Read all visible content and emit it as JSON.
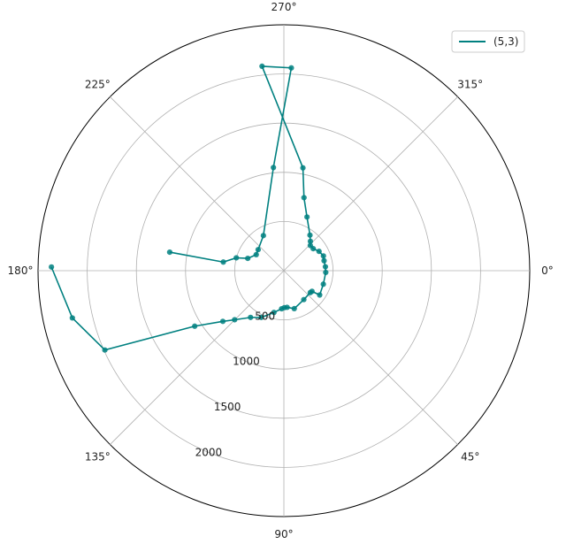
{
  "chart_data": {
    "type": "line",
    "projection": "polar",
    "theta_direction": "clockwise",
    "theta_zero_location": "east",
    "rlim": [
      0,
      2500
    ],
    "grid": true,
    "legend_position": "top-right",
    "angle_ticks": [
      {
        "deg": 0,
        "label": "0°"
      },
      {
        "deg": 45,
        "label": "45°"
      },
      {
        "deg": 90,
        "label": "90°"
      },
      {
        "deg": 135,
        "label": "135°"
      },
      {
        "deg": 180,
        "label": "180°"
      },
      {
        "deg": 225,
        "label": "225°"
      },
      {
        "deg": 270,
        "label": "270°"
      },
      {
        "deg": 315,
        "label": "315°"
      }
    ],
    "radial_ticks": [
      {
        "r": 500,
        "label": "500"
      },
      {
        "r": 1000,
        "label": "1000"
      },
      {
        "r": 1500,
        "label": "1500"
      },
      {
        "r": 2000,
        "label": "2000"
      }
    ],
    "radial_grid": [
      500,
      1000,
      1500,
      2000,
      2500
    ],
    "series": [
      {
        "name": "(5,3)",
        "color": "#008080",
        "points": [
          {
            "theta": 189.2,
            "r": 1176
          },
          {
            "theta": 188.1,
            "r": 622
          },
          {
            "theta": 195.1,
            "r": 501
          },
          {
            "theta": 198.8,
            "r": 388
          },
          {
            "theta": 210.1,
            "r": 325
          },
          {
            "theta": 219.3,
            "r": 338
          },
          {
            "theta": 239.7,
            "r": 413
          },
          {
            "theta": 264.2,
            "r": 1054
          },
          {
            "theta": 272.1,
            "r": 2063
          },
          {
            "theta": 263.9,
            "r": 2090
          },
          {
            "theta": 280.5,
            "r": 1063
          },
          {
            "theta": 285.4,
            "r": 770
          },
          {
            "theta": 293.3,
            "r": 594
          },
          {
            "theta": 306.3,
            "r": 448
          },
          {
            "theta": 312.1,
            "r": 402
          },
          {
            "theta": 316.4,
            "r": 371
          },
          {
            "theta": 323.1,
            "r": 373
          },
          {
            "theta": 331.2,
            "r": 408
          },
          {
            "theta": 339.6,
            "r": 429
          },
          {
            "theta": 346.1,
            "r": 421
          },
          {
            "theta": 354.6,
            "r": 424
          },
          {
            "theta": 2.4,
            "r": 426
          },
          {
            "theta": 18.9,
            "r": 424
          },
          {
            "theta": 34.2,
            "r": 440
          },
          {
            "theta": 36.3,
            "r": 355
          },
          {
            "theta": 39.8,
            "r": 349
          },
          {
            "theta": 55.4,
            "r": 357
          },
          {
            "theta": 74.7,
            "r": 400
          },
          {
            "theta": 85.0,
            "r": 374
          },
          {
            "theta": 89.3,
            "r": 376
          },
          {
            "theta": 93.4,
            "r": 388
          },
          {
            "theta": 103.4,
            "r": 437
          },
          {
            "theta": 115.8,
            "r": 528
          },
          {
            "theta": 125.5,
            "r": 584
          },
          {
            "theta": 135.1,
            "r": 707
          },
          {
            "theta": 140.3,
            "r": 807
          },
          {
            "theta": 148.1,
            "r": 1068
          },
          {
            "theta": 156.1,
            "r": 1991
          },
          {
            "theta": 167.4,
            "r": 2204
          },
          {
            "theta": 180.9,
            "r": 2364
          }
        ]
      }
    ]
  }
}
